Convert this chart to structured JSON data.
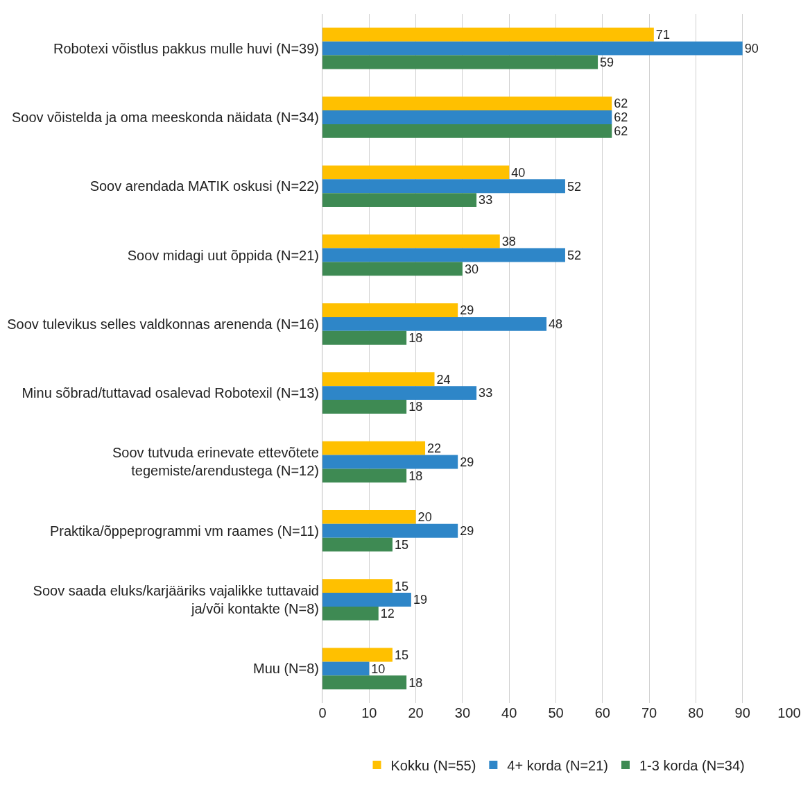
{
  "chart_data": {
    "type": "bar",
    "orientation": "horizontal",
    "categories": [
      "Robotexi võistlus pakkus mulle huvi (N=39)",
      "Soov võistelda ja oma meeskonda näidata (N=34)",
      "Soov arendada MATIK oskusi (N=22)",
      "Soov midagi uut õppida (N=21)",
      "Soov tulevikus selles valdkonnas arenenda (N=16)",
      "Minu sõbrad/tuttavad osalevad Robotexil (N=13)",
      "Soov tutvuda erinevate ettevõtete\ntegemiste/arendustega (N=12)",
      "Praktika/õppeprogrammi vm raames (N=11)",
      "Soov saada eluks/karjääriks vajalikke tuttavaid\nja/või kontakte (N=8)",
      "Muu (N=8)"
    ],
    "series": [
      {
        "name": "Kokku (N=55)",
        "color": "#ffc000",
        "values": [
          71,
          62,
          40,
          38,
          29,
          24,
          22,
          20,
          15,
          15
        ]
      },
      {
        "name": "4+ korda (N=21)",
        "color": "#2e86c8",
        "values": [
          90,
          62,
          52,
          52,
          48,
          33,
          29,
          29,
          19,
          10
        ]
      },
      {
        "name": "1-3 korda (N=34)",
        "color": "#3e8a53",
        "values": [
          59,
          62,
          33,
          30,
          18,
          18,
          18,
          15,
          12,
          18
        ]
      }
    ],
    "xlim": [
      0,
      100
    ],
    "xticks": [
      0,
      10,
      20,
      30,
      40,
      50,
      60,
      70,
      80,
      90,
      100
    ],
    "grid": "x",
    "legend": "bottom",
    "data_labels": true
  }
}
